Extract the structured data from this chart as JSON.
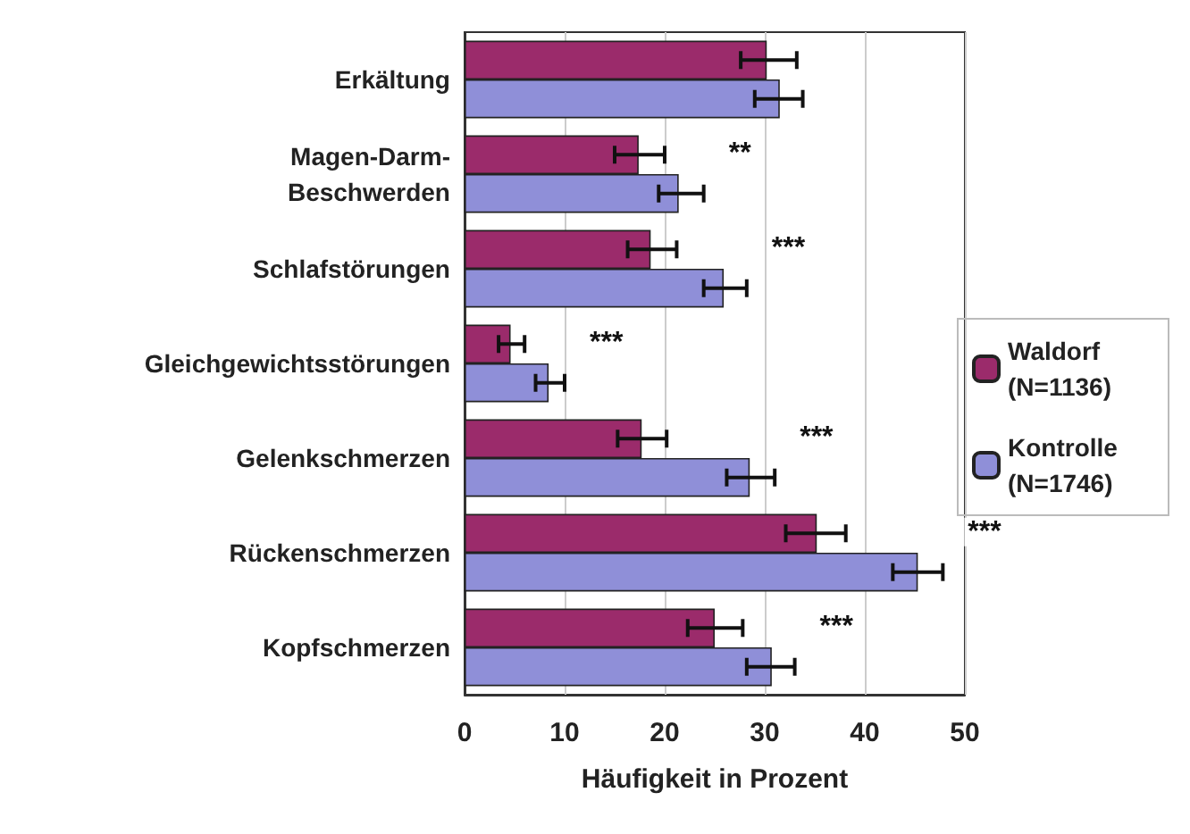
{
  "chart_data": {
    "type": "bar",
    "orientation": "horizontal",
    "xlabel": "Häufigkeit in Prozent",
    "categories": [
      "Erkältung",
      "Magen-Darm-\nBeschwerden",
      "Schlafstörungen",
      "Gleichgewichtsstörungen",
      "Gelenkschmerzen",
      "Rückenschmerzen",
      "Kopfschmerzen"
    ],
    "series": [
      {
        "name": "Waldorf (N=1136)",
        "color": "#9b2b6b",
        "values": [
          30.2,
          17.4,
          18.6,
          4.6,
          17.7,
          35.2,
          25.0
        ],
        "errors": [
          [
            27.6,
            33.2
          ],
          [
            15.0,
            20.0
          ],
          [
            16.3,
            21.2
          ],
          [
            3.4,
            6.0
          ],
          [
            15.3,
            20.2
          ],
          [
            32.1,
            38.1
          ],
          [
            22.3,
            27.8
          ]
        ]
      },
      {
        "name": "Kontrolle (N=1746)",
        "color": "#8f8fd8",
        "values": [
          31.5,
          21.4,
          25.9,
          8.4,
          28.5,
          45.3,
          30.7
        ],
        "errors": [
          [
            29.0,
            33.8
          ],
          [
            19.4,
            23.9
          ],
          [
            23.9,
            28.2
          ],
          [
            7.1,
            10.0
          ],
          [
            26.2,
            31.0
          ],
          [
            42.8,
            47.8
          ],
          [
            28.2,
            33.0
          ]
        ]
      }
    ],
    "xlim": [
      0,
      50
    ],
    "xticks": [
      0,
      10,
      20,
      30,
      40,
      50
    ],
    "grid": "x",
    "legend": "right",
    "annotations": [
      {
        "text": "**",
        "x": 21.4,
        "y": "Magen-Darm-\nBeschwerden"
      },
      {
        "text": "***",
        "x": 25.9,
        "y": "Schlafstörungen"
      },
      {
        "text": "***",
        "x": 8.4,
        "y": "Gleichgewichtsstörungen"
      },
      {
        "text": "***",
        "x": 28.5,
        "y": "Gelenkschmerzen"
      },
      {
        "text": "***",
        "x": 45.3,
        "y": "Rückenschmerzen"
      },
      {
        "text": "***",
        "x": 30.7,
        "y": "Kopfschmerzen"
      }
    ]
  }
}
